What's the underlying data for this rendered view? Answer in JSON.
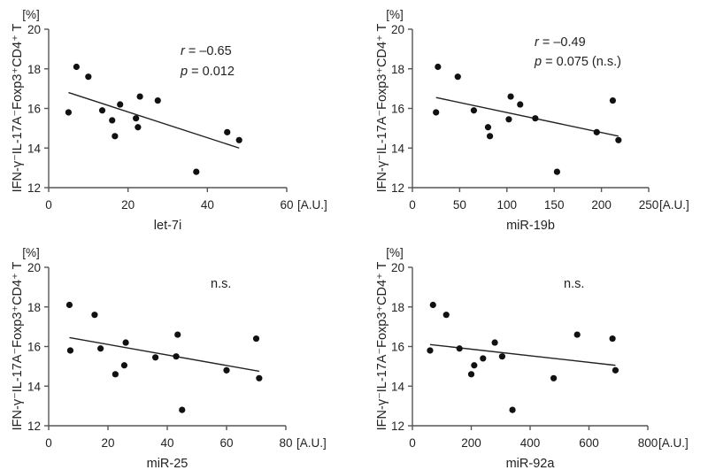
{
  "chart_data": [
    {
      "type": "scatter",
      "ylabel": "IFN-γ⁻IL-17A⁻Foxp3⁺CD4⁺ T",
      "yunit": "[%]",
      "xlabel": "let-7i",
      "xunit": "[A.U.]",
      "xlim": [
        0,
        60
      ],
      "ylim": [
        12,
        20
      ],
      "xticks": [
        0,
        20,
        40,
        60
      ],
      "yticks": [
        12,
        14,
        16,
        18,
        20
      ],
      "annotations": [
        {
          "parts": [
            {
              "text": "r",
              "italic": true
            },
            {
              "text": " = –0.65"
            }
          ]
        },
        {
          "parts": [
            {
              "text": "p",
              "italic": true
            },
            {
              "text": " = 0.012"
            }
          ]
        }
      ],
      "trendline": {
        "x": [
          5,
          48
        ],
        "y": [
          16.8,
          14.0
        ]
      },
      "points": [
        {
          "x": 5,
          "y": 15.8
        },
        {
          "x": 7,
          "y": 18.1
        },
        {
          "x": 10,
          "y": 17.6
        },
        {
          "x": 13.5,
          "y": 15.9
        },
        {
          "x": 16,
          "y": 15.4
        },
        {
          "x": 16.7,
          "y": 14.6
        },
        {
          "x": 18,
          "y": 16.2
        },
        {
          "x": 22,
          "y": 15.5
        },
        {
          "x": 22.5,
          "y": 15.05
        },
        {
          "x": 23,
          "y": 16.6
        },
        {
          "x": 27.5,
          "y": 16.4
        },
        {
          "x": 37.2,
          "y": 12.8
        },
        {
          "x": 45,
          "y": 14.8
        },
        {
          "x": 48,
          "y": 14.4
        }
      ]
    },
    {
      "type": "scatter",
      "ylabel": "IFN-γ⁻IL-17A⁻Foxp3⁺CD4⁺ T",
      "yunit": "[%]",
      "xlabel": "miR-19b",
      "xunit": "[A.U.]",
      "xlim": [
        0,
        250
      ],
      "ylim": [
        12,
        20
      ],
      "xticks": [
        0,
        50,
        100,
        150,
        200,
        250
      ],
      "yticks": [
        12,
        14,
        16,
        18,
        20
      ],
      "annotations": [
        {
          "parts": [
            {
              "text": "r",
              "italic": true
            },
            {
              "text": " = –0.49"
            }
          ]
        },
        {
          "parts": [
            {
              "text": "p",
              "italic": true
            },
            {
              "text": " = 0.075 (n.s.)"
            }
          ]
        }
      ],
      "trendline": {
        "x": [
          25,
          218
        ],
        "y": [
          16.55,
          14.6
        ]
      },
      "points": [
        {
          "x": 25,
          "y": 15.8
        },
        {
          "x": 27,
          "y": 18.1
        },
        {
          "x": 48,
          "y": 17.6
        },
        {
          "x": 65,
          "y": 15.9
        },
        {
          "x": 80,
          "y": 15.05
        },
        {
          "x": 82,
          "y": 14.6
        },
        {
          "x": 102,
          "y": 15.45
        },
        {
          "x": 104,
          "y": 16.6
        },
        {
          "x": 114,
          "y": 16.2
        },
        {
          "x": 130,
          "y": 15.5
        },
        {
          "x": 153,
          "y": 12.8
        },
        {
          "x": 195,
          "y": 14.8
        },
        {
          "x": 212,
          "y": 16.4
        },
        {
          "x": 218,
          "y": 14.4
        }
      ]
    },
    {
      "type": "scatter",
      "ylabel": "IFN-γ⁻IL-17A⁻Foxp3⁺CD4⁺ T",
      "yunit": "[%]",
      "xlabel": "miR-25",
      "xunit": "[A.U.]",
      "xlim": [
        0,
        80
      ],
      "ylim": [
        12,
        20
      ],
      "xticks": [
        0,
        20,
        40,
        60,
        80
      ],
      "yticks": [
        12,
        14,
        16,
        18,
        20
      ],
      "annotations": [
        {
          "parts": [
            {
              "text": "n.s."
            }
          ]
        }
      ],
      "trendline": {
        "x": [
          7,
          71
        ],
        "y": [
          16.45,
          14.75
        ]
      },
      "points": [
        {
          "x": 7,
          "y": 18.1
        },
        {
          "x": 7.3,
          "y": 15.8
        },
        {
          "x": 15.5,
          "y": 17.6
        },
        {
          "x": 17.5,
          "y": 15.9
        },
        {
          "x": 22.5,
          "y": 14.6
        },
        {
          "x": 26,
          "y": 16.2
        },
        {
          "x": 25.5,
          "y": 15.05
        },
        {
          "x": 36,
          "y": 15.45
        },
        {
          "x": 43,
          "y": 15.5
        },
        {
          "x": 43.5,
          "y": 16.6
        },
        {
          "x": 45,
          "y": 12.8
        },
        {
          "x": 60,
          "y": 14.8
        },
        {
          "x": 70,
          "y": 16.4
        },
        {
          "x": 71,
          "y": 14.4
        }
      ]
    },
    {
      "type": "scatter",
      "ylabel": "IFN-γ⁻IL-17A⁻Foxp3⁺CD4⁺ T",
      "yunit": "[%]",
      "xlabel": "miR-92a",
      "xunit": "[A.U.]",
      "xlim": [
        0,
        800
      ],
      "ylim": [
        12,
        20
      ],
      "xticks": [
        0,
        200,
        400,
        600,
        800
      ],
      "yticks": [
        12,
        14,
        16,
        18,
        20
      ],
      "annotations": [
        {
          "parts": [
            {
              "text": "n.s."
            }
          ]
        }
      ],
      "trendline": {
        "x": [
          60,
          690
        ],
        "y": [
          16.1,
          15.05
        ]
      },
      "points": [
        {
          "x": 60,
          "y": 15.8
        },
        {
          "x": 70,
          "y": 18.1
        },
        {
          "x": 115,
          "y": 17.6
        },
        {
          "x": 160,
          "y": 15.9
        },
        {
          "x": 200,
          "y": 14.6
        },
        {
          "x": 210,
          "y": 15.05
        },
        {
          "x": 240,
          "y": 15.4
        },
        {
          "x": 280,
          "y": 16.2
        },
        {
          "x": 305,
          "y": 15.5
        },
        {
          "x": 340,
          "y": 12.8
        },
        {
          "x": 480,
          "y": 14.4
        },
        {
          "x": 560,
          "y": 16.6
        },
        {
          "x": 680,
          "y": 16.4
        },
        {
          "x": 690,
          "y": 14.8
        }
      ]
    }
  ]
}
